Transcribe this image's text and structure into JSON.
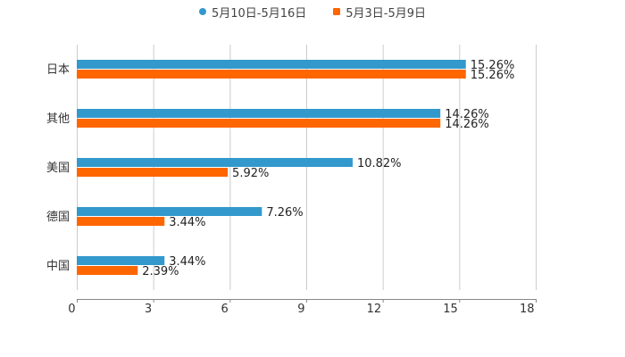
{
  "chart_data": {
    "type": "bar",
    "orientation": "horizontal",
    "title": "",
    "xlabel": "",
    "ylabel": "",
    "categories": [
      "日本",
      "其他",
      "美国",
      "德国",
      "中国"
    ],
    "series": [
      {
        "name": "5月10日-5月16日",
        "color": "#3399cc",
        "values": [
          15.26,
          14.26,
          10.82,
          7.26,
          3.44
        ],
        "labels": [
          "15.26%",
          "14.26%",
          "10.82%",
          "7.26%",
          "3.44%"
        ]
      },
      {
        "name": "5月3日-5月9日",
        "color": "#ff6600",
        "values": [
          15.26,
          14.26,
          5.92,
          3.44,
          2.39
        ],
        "labels": [
          "15.26%",
          "14.26%",
          "5.92%",
          "3.44%",
          "2.39%"
        ]
      }
    ],
    "xlim": [
      0,
      18
    ],
    "xticks": [
      "0",
      "3",
      "6",
      "9",
      "12",
      "15",
      "18"
    ],
    "grid": true,
    "legend_position": "top"
  },
  "legend": {
    "items": [
      {
        "label": "5月10日-5月16日",
        "color": "#3399cc",
        "marker": "circle"
      },
      {
        "label": "5月3日-5月9日",
        "color": "#ff6600",
        "marker": "square"
      }
    ]
  }
}
